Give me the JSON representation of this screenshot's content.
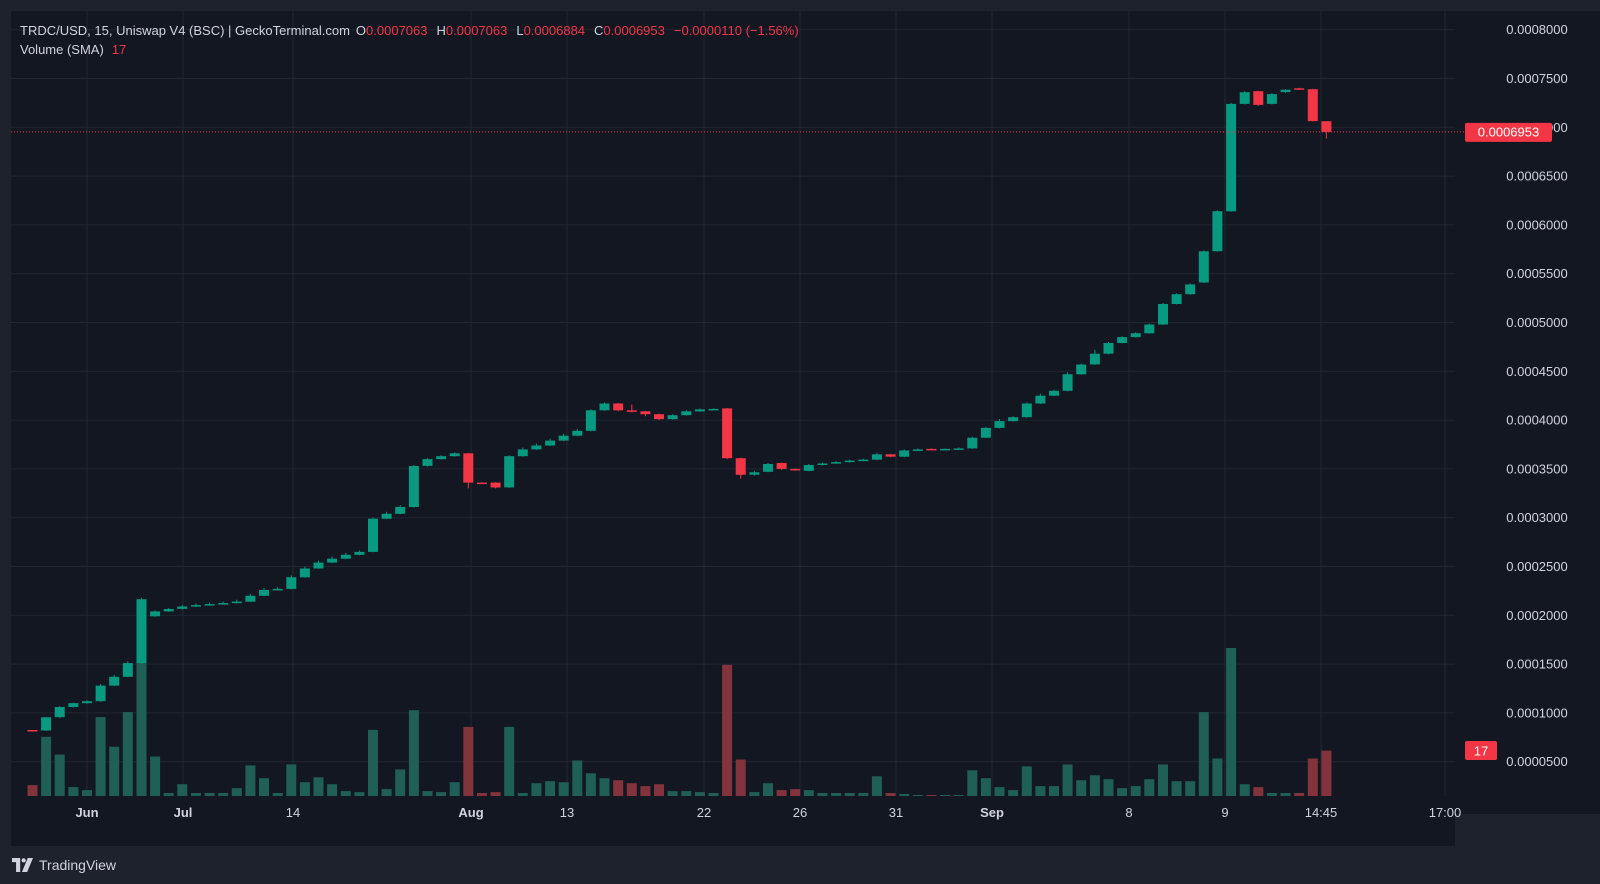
{
  "legend": {
    "title": "TRDC/USD, 15, Uniswap V4 (BSC) | GeckoTerminal.com",
    "o_label": "O",
    "o_value": "0.0007063",
    "h_label": "H",
    "h_value": "0.0007063",
    "l_label": "L",
    "l_value": "0.0006884",
    "c_label": "C",
    "c_value": "0.0006953",
    "change": "−0.0000110 (−1.56%)",
    "volume_label": "Volume (SMA)",
    "volume_value": "17"
  },
  "brand": {
    "name": "TradingView",
    "icon": "tradingview-logo-icon"
  },
  "colors": {
    "background": "#131722",
    "up": "#089981",
    "down": "#f23645",
    "up_volume": "#1f5f55",
    "down_volume": "#82333c",
    "grid": "#232733",
    "text": "#d1d4dc"
  },
  "chart_data": {
    "type": "candlestick",
    "symbol": "TRDC/USD",
    "interval": "15",
    "last_price": 0.0006953,
    "last_price_label": "0.0006953",
    "volume_badge_label": "17",
    "ylim": [
      0.0,
      0.00081
    ],
    "y_ticks": [
      "0.0000500",
      "0.0001000",
      "0.0001500",
      "0.0002000",
      "0.0002500",
      "0.0003000",
      "0.0003500",
      "0.0004000",
      "0.0004500",
      "0.0005000",
      "0.0005500",
      "0.0006000",
      "0.0006500",
      "0.0007000",
      "0.0007500",
      "0.0008000"
    ],
    "x_ticks": [
      "Jun",
      "Jul",
      "14",
      "Aug",
      "13",
      "22",
      "26",
      "31",
      "Sep",
      "8",
      "9",
      "14:45",
      "17:00"
    ],
    "candles": [
      {
        "o": 8.25e-05,
        "h": 8.25e-05,
        "l": 8.2e-05,
        "c": 8.2e-05,
        "v": 11
      },
      {
        "o": 8.2e-05,
        "h": 9.6e-05,
        "l": 8.15e-05,
        "c": 9.55e-05,
        "v": 60
      },
      {
        "o": 9.55e-05,
        "h": 0.000107,
        "l": 9.5e-05,
        "c": 0.000106,
        "v": 42
      },
      {
        "o": 0.000106,
        "h": 0.0001105,
        "l": 0.0001055,
        "c": 0.00011,
        "v": 9
      },
      {
        "o": 0.00011,
        "h": 0.000113,
        "l": 0.0001095,
        "c": 0.000112,
        "v": 6
      },
      {
        "o": 0.000112,
        "h": 0.0001295,
        "l": 0.0001115,
        "c": 0.000128,
        "v": 80
      },
      {
        "o": 0.000128,
        "h": 0.000139,
        "l": 0.0001275,
        "c": 0.000137,
        "v": 50
      },
      {
        "o": 0.000137,
        "h": 0.000153,
        "l": 0.0001365,
        "c": 0.000151,
        "v": 85
      },
      {
        "o": 0.000151,
        "h": 0.000218,
        "l": 0.0001505,
        "c": 0.0002165,
        "v": 150
      },
      {
        "o": 0.000199,
        "h": 0.000205,
        "l": 0.0001985,
        "c": 0.000204,
        "v": 40
      },
      {
        "o": 0.000204,
        "h": 0.0002075,
        "l": 0.0002035,
        "c": 0.0002065,
        "v": 3
      },
      {
        "o": 0.0002065,
        "h": 0.0002105,
        "l": 0.000206,
        "c": 0.000209,
        "v": 12
      },
      {
        "o": 0.000209,
        "h": 0.000212,
        "l": 0.0002085,
        "c": 0.0002105,
        "v": 3
      },
      {
        "o": 0.0002105,
        "h": 0.000213,
        "l": 0.00021,
        "c": 0.0002115,
        "v": 3
      },
      {
        "o": 0.0002115,
        "h": 0.000214,
        "l": 0.000211,
        "c": 0.0002125,
        "v": 3
      },
      {
        "o": 0.0002125,
        "h": 0.000216,
        "l": 0.000212,
        "c": 0.000214,
        "v": 8
      },
      {
        "o": 0.000214,
        "h": 0.000222,
        "l": 0.0002135,
        "c": 0.00022,
        "v": 31
      },
      {
        "o": 0.00022,
        "h": 0.000228,
        "l": 0.0002195,
        "c": 0.000226,
        "v": 18
      },
      {
        "o": 0.000226,
        "h": 0.000229,
        "l": 0.0002255,
        "c": 0.000227,
        "v": 3
      },
      {
        "o": 0.000227,
        "h": 0.000241,
        "l": 0.0002265,
        "c": 0.000239,
        "v": 32
      },
      {
        "o": 0.000239,
        "h": 0.00025,
        "l": 0.0002385,
        "c": 0.000248,
        "v": 14
      },
      {
        "o": 0.000248,
        "h": 0.000256,
        "l": 0.0002475,
        "c": 0.000254,
        "v": 19
      },
      {
        "o": 0.000254,
        "h": 0.00026,
        "l": 0.0002535,
        "c": 0.000258,
        "v": 12
      },
      {
        "o": 0.000258,
        "h": 0.000264,
        "l": 0.0002575,
        "c": 0.000262,
        "v": 5
      },
      {
        "o": 0.000262,
        "h": 0.0002665,
        "l": 0.0002615,
        "c": 0.000265,
        "v": 4
      },
      {
        "o": 0.000265,
        "h": 0.0003,
        "l": 0.0002645,
        "c": 0.000299,
        "v": 67
      },
      {
        "o": 0.000299,
        "h": 0.000306,
        "l": 0.0002985,
        "c": 0.000304,
        "v": 7
      },
      {
        "o": 0.000304,
        "h": 0.000313,
        "l": 0.0003035,
        "c": 0.000311,
        "v": 27
      },
      {
        "o": 0.000311,
        "h": 0.000354,
        "l": 0.0003105,
        "c": 0.000353,
        "v": 87
      },
      {
        "o": 0.000353,
        "h": 0.000361,
        "l": 0.0003525,
        "c": 0.00036,
        "v": 5
      },
      {
        "o": 0.00036,
        "h": 0.000364,
        "l": 0.0003595,
        "c": 0.000363,
        "v": 4
      },
      {
        "o": 0.000363,
        "h": 0.000367,
        "l": 0.0003625,
        "c": 0.000366,
        "v": 14
      },
      {
        "o": 0.000366,
        "h": 0.0003665,
        "l": 0.00033,
        "c": 0.000336,
        "v": 70
      },
      {
        "o": 0.000336,
        "h": 0.0003365,
        "l": 0.000335,
        "c": 0.0003355,
        "v": 3
      },
      {
        "o": 0.000336,
        "h": 0.0003365,
        "l": 0.00033,
        "c": 0.000331,
        "v": 4
      },
      {
        "o": 0.000331,
        "h": 0.000364,
        "l": 0.0003305,
        "c": 0.000363,
        "v": 70
      },
      {
        "o": 0.000363,
        "h": 0.000372,
        "l": 0.0003625,
        "c": 0.00037,
        "v": 3
      },
      {
        "o": 0.00037,
        "h": 0.000376,
        "l": 0.0003695,
        "c": 0.000374,
        "v": 13
      },
      {
        "o": 0.000374,
        "h": 0.000381,
        "l": 0.0003735,
        "c": 0.000379,
        "v": 15
      },
      {
        "o": 0.000379,
        "h": 0.000386,
        "l": 0.0003785,
        "c": 0.000384,
        "v": 14
      },
      {
        "o": 0.000384,
        "h": 0.000391,
        "l": 0.0003835,
        "c": 0.000389,
        "v": 36
      },
      {
        "o": 0.000389,
        "h": 0.000411,
        "l": 0.0003885,
        "c": 0.00041,
        "v": 23
      },
      {
        "o": 0.00041,
        "h": 0.000418,
        "l": 0.0004095,
        "c": 0.000417,
        "v": 18
      },
      {
        "o": 0.000417,
        "h": 0.0004175,
        "l": 0.000409,
        "c": 0.00041,
        "v": 16
      },
      {
        "o": 0.00041,
        "h": 0.000416,
        "l": 0.000408,
        "c": 0.000409,
        "v": 13
      },
      {
        "o": 0.000409,
        "h": 0.0004095,
        "l": 0.000404,
        "c": 0.000406,
        "v": 10
      },
      {
        "o": 0.000406,
        "h": 0.0004065,
        "l": 0.0004,
        "c": 0.000401,
        "v": 12
      },
      {
        "o": 0.000401,
        "h": 0.000406,
        "l": 0.0004005,
        "c": 0.000405,
        "v": 5
      },
      {
        "o": 0.000405,
        "h": 0.0004105,
        "l": 0.0004045,
        "c": 0.000409,
        "v": 5
      },
      {
        "o": 0.000409,
        "h": 0.000412,
        "l": 0.0004085,
        "c": 0.000411,
        "v": 4
      },
      {
        "o": 0.000411,
        "h": 0.000412,
        "l": 0.0004105,
        "c": 0.0004115,
        "v": 3
      },
      {
        "o": 0.000412,
        "h": 0.0004125,
        "l": 0.00036,
        "c": 0.000361,
        "v": 133
      },
      {
        "o": 0.000361,
        "h": 0.0003615,
        "l": 0.00034,
        "c": 0.000344,
        "v": 37
      },
      {
        "o": 0.000344,
        "h": 0.000348,
        "l": 0.000343,
        "c": 0.0003465,
        "v": 4
      },
      {
        "o": 0.000347,
        "h": 0.000356,
        "l": 0.0003465,
        "c": 0.000355,
        "v": 13
      },
      {
        "o": 0.000356,
        "h": 0.0003565,
        "l": 0.000349,
        "c": 0.00035,
        "v": 6
      },
      {
        "o": 0.00035,
        "h": 0.0003505,
        "l": 0.000348,
        "c": 0.0003485,
        "v": 7
      },
      {
        "o": 0.000348,
        "h": 0.000355,
        "l": 0.0003475,
        "c": 0.000354,
        "v": 6
      },
      {
        "o": 0.000354,
        "h": 0.0003565,
        "l": 0.0003535,
        "c": 0.0003555,
        "v": 3
      },
      {
        "o": 0.0003555,
        "h": 0.000358,
        "l": 0.000355,
        "c": 0.000357,
        "v": 3
      },
      {
        "o": 0.000357,
        "h": 0.0003595,
        "l": 0.0003565,
        "c": 0.0003585,
        "v": 3
      },
      {
        "o": 0.0003585,
        "h": 0.0003605,
        "l": 0.000358,
        "c": 0.0003595,
        "v": 3
      },
      {
        "o": 0.0003595,
        "h": 0.0003665,
        "l": 0.000359,
        "c": 0.000365,
        "v": 20
      },
      {
        "o": 0.000365,
        "h": 0.0003655,
        "l": 0.000362,
        "c": 0.0003625,
        "v": 3
      },
      {
        "o": 0.0003625,
        "h": 0.00037,
        "l": 0.000362,
        "c": 0.000369,
        "v": 2
      },
      {
        "o": 0.000369,
        "h": 0.000371,
        "l": 0.0003685,
        "c": 0.00037,
        "v": 1
      },
      {
        "o": 0.0003705,
        "h": 0.000371,
        "l": 0.0003695,
        "c": 0.00037,
        "v": 1
      },
      {
        "o": 0.00037,
        "h": 0.000371,
        "l": 0.0003695,
        "c": 0.0003705,
        "v": 1
      },
      {
        "o": 0.0003705,
        "h": 0.000372,
        "l": 0.00037,
        "c": 0.000371,
        "v": 1
      },
      {
        "o": 0.000371,
        "h": 0.000383,
        "l": 0.0003705,
        "c": 0.000382,
        "v": 26
      },
      {
        "o": 0.000382,
        "h": 0.000393,
        "l": 0.0003815,
        "c": 0.000392,
        "v": 18
      },
      {
        "o": 0.000392,
        "h": 0.000401,
        "l": 0.0003915,
        "c": 0.000399,
        "v": 9
      },
      {
        "o": 0.000399,
        "h": 0.000404,
        "l": 0.0003985,
        "c": 0.000403,
        "v": 6
      },
      {
        "o": 0.000403,
        "h": 0.000418,
        "l": 0.0004025,
        "c": 0.000417,
        "v": 30
      },
      {
        "o": 0.000417,
        "h": 0.000427,
        "l": 0.0004165,
        "c": 0.000425,
        "v": 10
      },
      {
        "o": 0.000425,
        "h": 0.000431,
        "l": 0.0004245,
        "c": 0.00043,
        "v": 10
      },
      {
        "o": 0.00043,
        "h": 0.000449,
        "l": 0.0004295,
        "c": 0.000447,
        "v": 32
      },
      {
        "o": 0.000447,
        "h": 0.000458,
        "l": 0.0004465,
        "c": 0.000457,
        "v": 16
      },
      {
        "o": 0.000457,
        "h": 0.000472,
        "l": 0.0004565,
        "c": 0.000468,
        "v": 21
      },
      {
        "o": 0.000468,
        "h": 0.00048,
        "l": 0.0004675,
        "c": 0.000479,
        "v": 17
      },
      {
        "o": 0.000479,
        "h": 0.000486,
        "l": 0.0004785,
        "c": 0.000485,
        "v": 8
      },
      {
        "o": 0.000485,
        "h": 0.00049,
        "l": 0.0004845,
        "c": 0.000489,
        "v": 10
      },
      {
        "o": 0.000489,
        "h": 0.000499,
        "l": 0.0004885,
        "c": 0.000498,
        "v": 17
      },
      {
        "o": 0.000498,
        "h": 0.00052,
        "l": 0.0004975,
        "c": 0.000519,
        "v": 32
      },
      {
        "o": 0.000519,
        "h": 0.00053,
        "l": 0.0005185,
        "c": 0.000529,
        "v": 15
      },
      {
        "o": 0.000529,
        "h": 0.00054,
        "l": 0.0005285,
        "c": 0.000539,
        "v": 15
      },
      {
        "o": 0.000541,
        "h": 0.000574,
        "l": 0.0005405,
        "c": 0.000573,
        "v": 85
      },
      {
        "o": 0.000573,
        "h": 0.000615,
        "l": 0.0005725,
        "c": 0.000614,
        "v": 38
      },
      {
        "o": 0.000614,
        "h": 0.000725,
        "l": 0.0006135,
        "c": 0.000724,
        "v": 150
      },
      {
        "o": 0.000724,
        "h": 0.000737,
        "l": 0.0007235,
        "c": 0.000736,
        "v": 12
      },
      {
        "o": 0.000737,
        "h": 0.0007375,
        "l": 0.000722,
        "c": 0.000723,
        "v": 9
      },
      {
        "o": 0.000724,
        "h": 0.000735,
        "l": 0.0007235,
        "c": 0.000734,
        "v": 3
      },
      {
        "o": 0.000736,
        "h": 0.000739,
        "l": 0.0007355,
        "c": 0.0007385,
        "v": 3
      },
      {
        "o": 0.00074,
        "h": 0.0007405,
        "l": 0.0007385,
        "c": 0.000739,
        "v": 3
      },
      {
        "o": 0.000739,
        "h": 0.0007395,
        "l": 0.000706,
        "c": 0.0007063,
        "v": 38
      },
      {
        "o": 0.0007063,
        "h": 0.0007063,
        "l": 0.0006884,
        "c": 0.0006953,
        "v": 46
      }
    ]
  }
}
